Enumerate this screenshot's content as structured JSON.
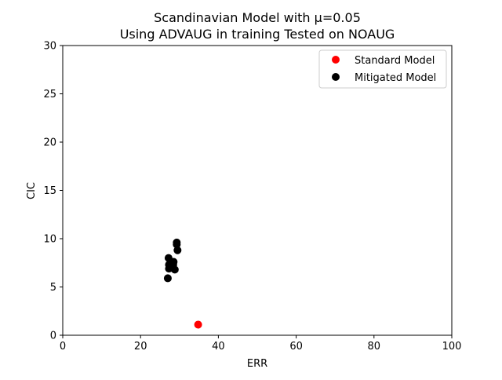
{
  "chart_data": {
    "type": "scatter",
    "title_lines": [
      "Scandinavian Model with μ=0.05",
      "Using ADVAUG in training Tested on NOAUG"
    ],
    "xlabel": "ERR",
    "ylabel": "CIC",
    "xlim": [
      0,
      100
    ],
    "ylim": [
      0,
      30
    ],
    "xticks": [
      0,
      20,
      40,
      60,
      80,
      100
    ],
    "yticks": [
      0,
      5,
      10,
      15,
      20,
      25,
      30
    ],
    "grid": false,
    "legend_position": "top-right",
    "series": [
      {
        "name": "Standard Model",
        "color": "#ff0000",
        "points": [
          {
            "x": 34.8,
            "y": 1.1
          }
        ]
      },
      {
        "name": "Mitigated Model",
        "color": "#000000",
        "points": [
          {
            "x": 29.3,
            "y": 9.6
          },
          {
            "x": 29.3,
            "y": 9.4
          },
          {
            "x": 29.5,
            "y": 8.8
          },
          {
            "x": 27.2,
            "y": 8.0
          },
          {
            "x": 27.8,
            "y": 7.6
          },
          {
            "x": 28.5,
            "y": 7.6
          },
          {
            "x": 28.4,
            "y": 7.3
          },
          {
            "x": 27.3,
            "y": 7.3
          },
          {
            "x": 27.3,
            "y": 6.9
          },
          {
            "x": 28.8,
            "y": 6.8
          },
          {
            "x": 27.0,
            "y": 5.9
          }
        ]
      }
    ]
  }
}
